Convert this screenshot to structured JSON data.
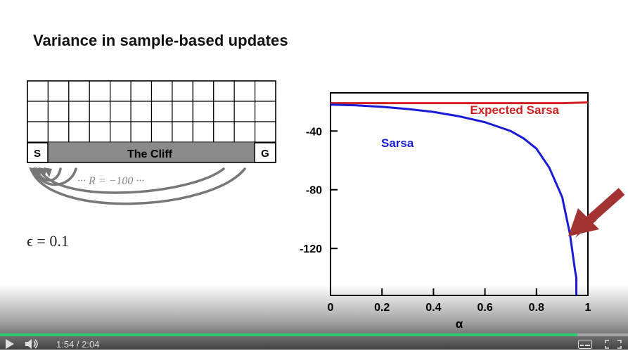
{
  "slide": {
    "title": "Variance in sample-based updates",
    "epsilon_label": "ϵ = 0.1",
    "colors": {
      "sarsa": "#1a1ad6",
      "expected_sarsa": "#d12020",
      "arrow": "#a33232",
      "cliff": "#8a8a8a"
    }
  },
  "gridworld": {
    "rows": 4,
    "cols": 12,
    "start_label": "S",
    "goal_label": "G",
    "cliff_label": "The Cliff",
    "reward_label": "··· R = −100 ···"
  },
  "chart_data": {
    "type": "line",
    "xlabel": "α",
    "ylabel": "",
    "xlim": [
      0,
      1
    ],
    "ylim": [
      -152,
      -14
    ],
    "x_ticks": [
      "0",
      "0.2",
      "0.4",
      "0.6",
      "0.8",
      "1"
    ],
    "y_ticks": [
      "-40",
      "-80",
      "-120"
    ],
    "series": [
      {
        "name": "Expected Sarsa",
        "x": [
          0,
          0.1,
          0.2,
          0.3,
          0.4,
          0.5,
          0.6,
          0.7,
          0.8,
          0.9,
          1.0
        ],
        "y": [
          -21,
          -21,
          -21,
          -21,
          -21,
          -21,
          -21,
          -21,
          -21,
          -21,
          -20.5
        ]
      },
      {
        "name": "Sarsa",
        "x": [
          0,
          0.1,
          0.2,
          0.3,
          0.4,
          0.5,
          0.55,
          0.6,
          0.65,
          0.7,
          0.75,
          0.8,
          0.85,
          0.9,
          0.93,
          0.95,
          0.955,
          0.955
        ],
        "y": [
          -22,
          -22.5,
          -23.5,
          -25,
          -27,
          -30,
          -32,
          -34,
          -37,
          -40,
          -45,
          -52,
          -65,
          -85,
          -110,
          -135,
          -140,
          -152
        ]
      }
    ]
  },
  "player": {
    "time_label": "1:54  /  2:04",
    "progress": 0.919
  }
}
